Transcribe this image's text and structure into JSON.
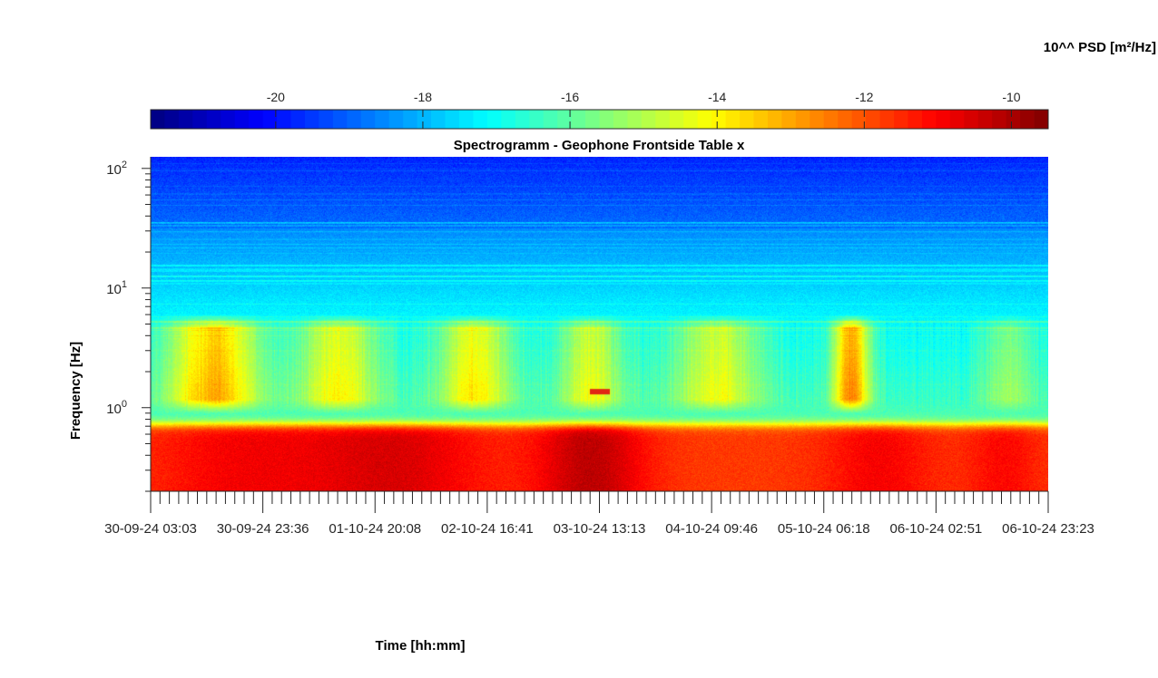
{
  "chart_data": {
    "type": "heatmap",
    "title": "Spectrogramm - Geophone Frontside Table x",
    "xlabel": "Time [hh:mm]",
    "ylabel": "Frequency [Hz]",
    "y_scale": "log",
    "ylim": [
      0.2,
      125
    ],
    "y_ticks": [
      {
        "value": 1,
        "base": "10",
        "exp": "0"
      },
      {
        "value": 10,
        "base": "10",
        "exp": "1"
      },
      {
        "value": 100,
        "base": "10",
        "exp": "2"
      }
    ],
    "x_tick_labels": [
      "30-09-24  03:03",
      "30-09-24  23:36",
      "01-10-24  20:08",
      "02-10-24  16:41",
      "03-10-24  13:13",
      "04-10-24  09:46",
      "05-10-24  06:18",
      "06-10-24  02:51",
      "06-10-24  23:23"
    ],
    "colorbar": {
      "label": "10^^ PSD [m²/Hz]",
      "colormap": "jet",
      "range": [
        -21.7,
        -9.5
      ],
      "ticks": [
        {
          "value": -20,
          "label": "-20"
        },
        {
          "value": -18,
          "label": "-18"
        },
        {
          "value": -16,
          "label": "-16"
        },
        {
          "value": -14,
          "label": "-14"
        },
        {
          "value": -12,
          "label": "-12"
        },
        {
          "value": -10,
          "label": "-10"
        }
      ]
    },
    "grid": false
  }
}
